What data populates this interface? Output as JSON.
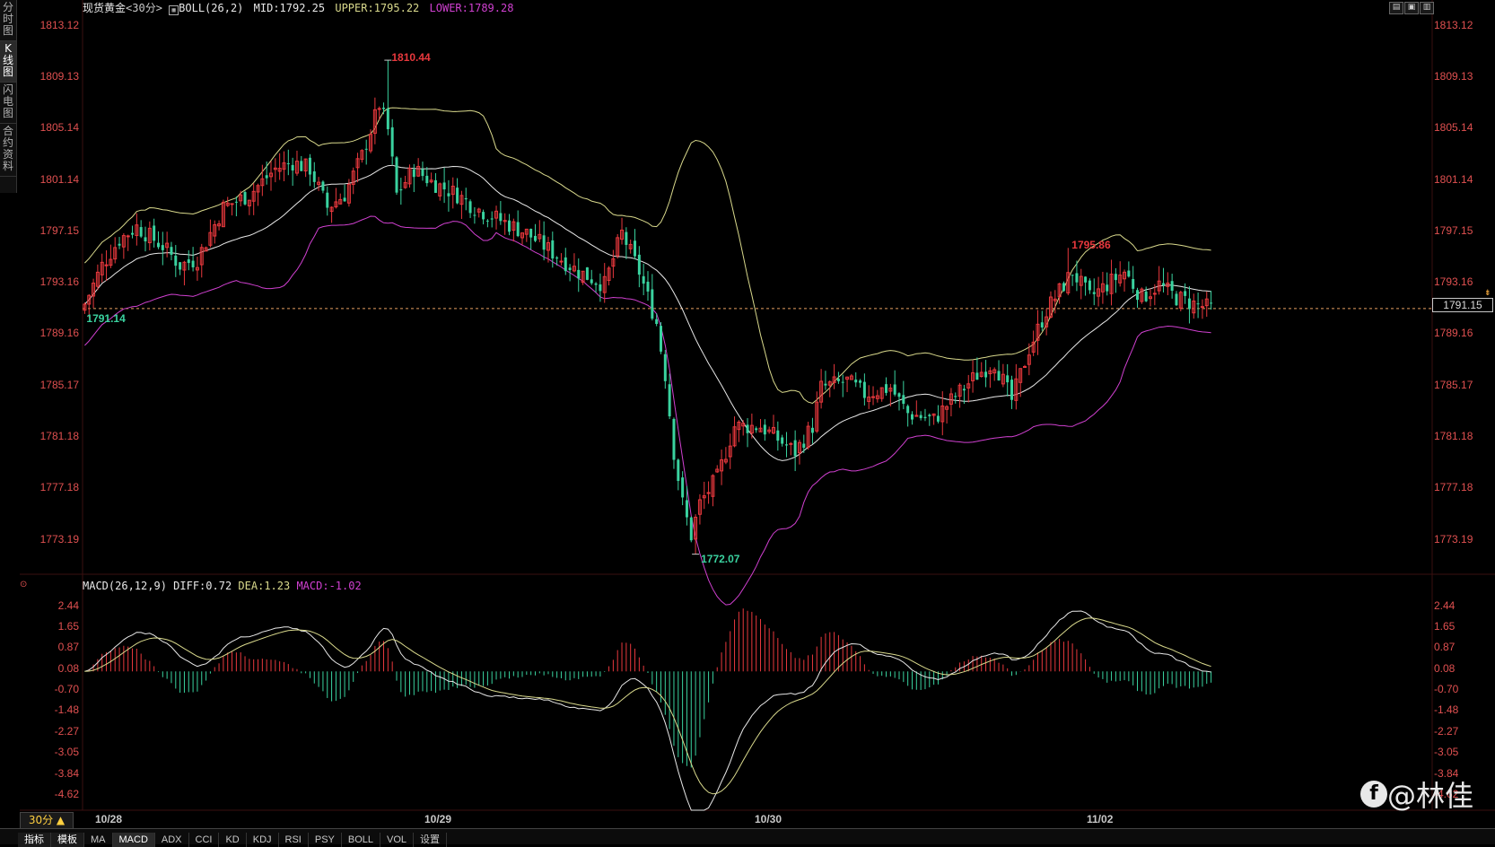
{
  "side_tabs": [
    "分时图",
    "K线图",
    "闪电图",
    "合约资料"
  ],
  "info": {
    "symbol": "现货黄金",
    "period_tag": "<30分>",
    "indicator": "BOLL(26,2)",
    "mid": "MID:1792.25",
    "upper": "UPPER:1795.22",
    "lower": "LOWER:1789.28"
  },
  "macd_info": {
    "name": "MACD(26,12,9)",
    "diff": "DIFF:0.72",
    "dea": "DEA:1.23",
    "macd": "MACD:-1.02"
  },
  "price_ticks": [
    "1813.12",
    "1809.13",
    "1805.14",
    "1801.14",
    "1797.15",
    "1793.16",
    "1789.16",
    "1785.17",
    "1781.18",
    "1777.18",
    "1773.19"
  ],
  "macd_ticks": [
    "2.44",
    "1.65",
    "0.87",
    "0.08",
    "-0.70",
    "-1.48",
    "-2.27",
    "-3.05",
    "-3.84",
    "-4.62"
  ],
  "dates": [
    "10/28",
    "10/29",
    "10/30",
    "11/02"
  ],
  "annotations": {
    "high": "1810.44",
    "low": "1772.07",
    "start": "1791.14",
    "recent_high": "1795.86"
  },
  "current_price": "1791.15",
  "period_selector": "30分 ▲",
  "bottom_tabs": [
    "指标",
    "模板",
    "MA",
    "MACD",
    "ADX",
    "CCI",
    "KD",
    "KDJ",
    "RSI",
    "PSY",
    "BOLL",
    "VOL",
    "设置"
  ],
  "active_tab": "MACD",
  "watermark": "@林佳",
  "colors": {
    "up": "#e8383d",
    "down": "#3ad29f",
    "mid": "#e8e8e8",
    "upper": "#d9d98c",
    "lower": "#d040d0",
    "tick": "#e05050"
  },
  "chart_data": {
    "type": "candlestick",
    "price_range": [
      1771,
      1814
    ],
    "highlighted_levels": {
      "high": 1810.44,
      "low": 1772.07,
      "current": 1791.15
    },
    "macd_range": [
      -5.2,
      2.9
    ]
  }
}
